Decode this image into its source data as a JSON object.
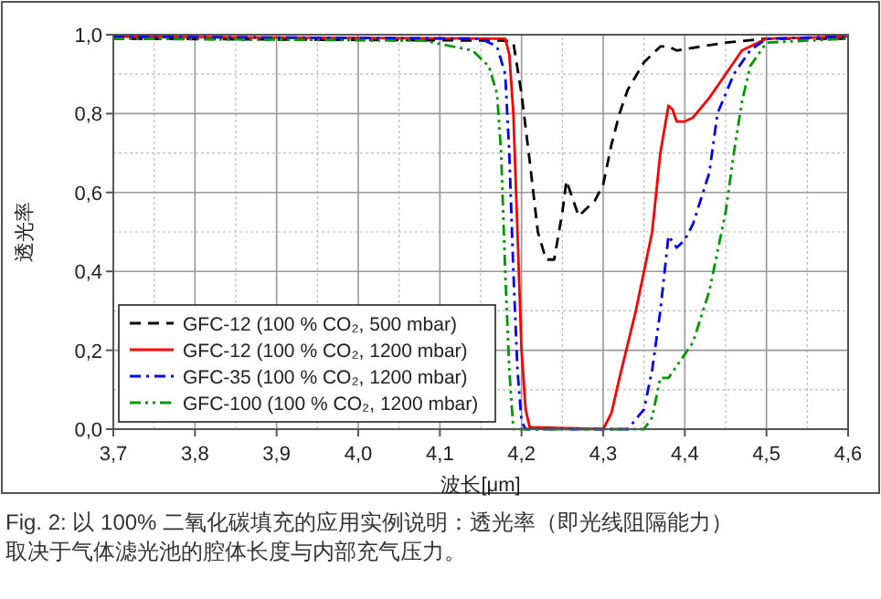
{
  "chart_data": {
    "type": "line",
    "xlabel": "波长[μm]",
    "ylabel": "透光率",
    "xlim": [
      3.7,
      4.6
    ],
    "ylim": [
      0,
      1
    ],
    "xticks": [
      {
        "value": 3.7,
        "label": "3,7"
      },
      {
        "value": 3.8,
        "label": "3,8"
      },
      {
        "value": 3.9,
        "label": "3,9"
      },
      {
        "value": 4.0,
        "label": "4,0"
      },
      {
        "value": 4.1,
        "label": "4,1"
      },
      {
        "value": 4.2,
        "label": "4,2"
      },
      {
        "value": 4.3,
        "label": "4,3"
      },
      {
        "value": 4.4,
        "label": "4,4"
      },
      {
        "value": 4.5,
        "label": "4,5"
      },
      {
        "value": 4.6,
        "label": "4,6"
      }
    ],
    "yticks": [
      {
        "value": 0,
        "label": "0,0"
      },
      {
        "value": 0.2,
        "label": "0,2"
      },
      {
        "value": 0.4,
        "label": "0,4"
      },
      {
        "value": 0.6,
        "label": "0,6"
      },
      {
        "value": 0.8,
        "label": "0,8"
      },
      {
        "value": 1.0,
        "label": "1,0"
      }
    ],
    "grid": true,
    "legend": "bottom left",
    "series": [
      {
        "name": "GFC-12 (100 % CO₂, 500 mbar)",
        "color": "#000000",
        "line_style": "dashed",
        "x": [
          3.7,
          4.18,
          4.19,
          4.2,
          4.21,
          4.22,
          4.23,
          4.24,
          4.25,
          4.255,
          4.26,
          4.27,
          4.28,
          4.29,
          4.3,
          4.31,
          4.32,
          4.33,
          4.35,
          4.37,
          4.38,
          4.39,
          4.42,
          4.45,
          4.5,
          4.6
        ],
        "values": [
          0.99,
          0.985,
          0.98,
          0.85,
          0.68,
          0.5,
          0.43,
          0.43,
          0.55,
          0.63,
          0.6,
          0.54,
          0.56,
          0.58,
          0.62,
          0.72,
          0.8,
          0.86,
          0.93,
          0.97,
          0.97,
          0.96,
          0.97,
          0.98,
          0.99,
          0.99
        ]
      },
      {
        "name": "GFC-12 (100 % CO₂, 1200 mbar)",
        "color": "#ff0000",
        "line_style": "solid",
        "x": [
          3.7,
          4.18,
          4.185,
          4.19,
          4.195,
          4.2,
          4.205,
          4.21,
          4.3,
          4.31,
          4.32,
          4.34,
          4.36,
          4.37,
          4.38,
          4.385,
          4.39,
          4.4,
          4.41,
          4.43,
          4.45,
          4.47,
          4.5,
          4.6
        ],
        "values": [
          0.995,
          0.99,
          0.95,
          0.8,
          0.5,
          0.2,
          0.05,
          0.005,
          0.0,
          0.04,
          0.13,
          0.3,
          0.5,
          0.7,
          0.82,
          0.81,
          0.78,
          0.78,
          0.79,
          0.84,
          0.9,
          0.96,
          0.99,
          0.995
        ]
      },
      {
        "name": "GFC-35 (100 % CO₂, 1200 mbar)",
        "color": "#0000ff",
        "line_style": "dashdot",
        "x": [
          3.7,
          4.15,
          4.17,
          4.18,
          4.185,
          4.19,
          4.195,
          4.2,
          4.205,
          4.33,
          4.35,
          4.36,
          4.37,
          4.38,
          4.39,
          4.4,
          4.41,
          4.43,
          4.44,
          4.46,
          4.48,
          4.5,
          4.6
        ],
        "values": [
          0.995,
          0.99,
          0.97,
          0.9,
          0.7,
          0.4,
          0.15,
          0.02,
          0.0,
          0.0,
          0.05,
          0.15,
          0.3,
          0.49,
          0.46,
          0.48,
          0.52,
          0.65,
          0.8,
          0.9,
          0.96,
          0.99,
          0.995
        ]
      },
      {
        "name": "GFC-100 (100 % CO₂, 1200 mbar)",
        "color": "#009900",
        "line_style": "dashdotdot",
        "x": [
          3.7,
          4.08,
          4.14,
          4.16,
          4.17,
          4.175,
          4.18,
          4.185,
          4.19,
          4.35,
          4.36,
          4.37,
          4.38,
          4.39,
          4.41,
          4.43,
          4.45,
          4.46,
          4.47,
          4.48,
          4.5,
          4.6
        ],
        "values": [
          0.99,
          0.985,
          0.96,
          0.92,
          0.85,
          0.7,
          0.4,
          0.15,
          0.0,
          0.0,
          0.03,
          0.13,
          0.13,
          0.16,
          0.22,
          0.35,
          0.55,
          0.7,
          0.83,
          0.92,
          0.98,
          0.99
        ]
      }
    ],
    "annotations": [
      "Fig. 2: 以 100% 二氧化碳填充的应用实例说明：透光率（即光线阻隔能力）取决于气体滤光池的腔体长度与内部充气压力。"
    ]
  }
}
